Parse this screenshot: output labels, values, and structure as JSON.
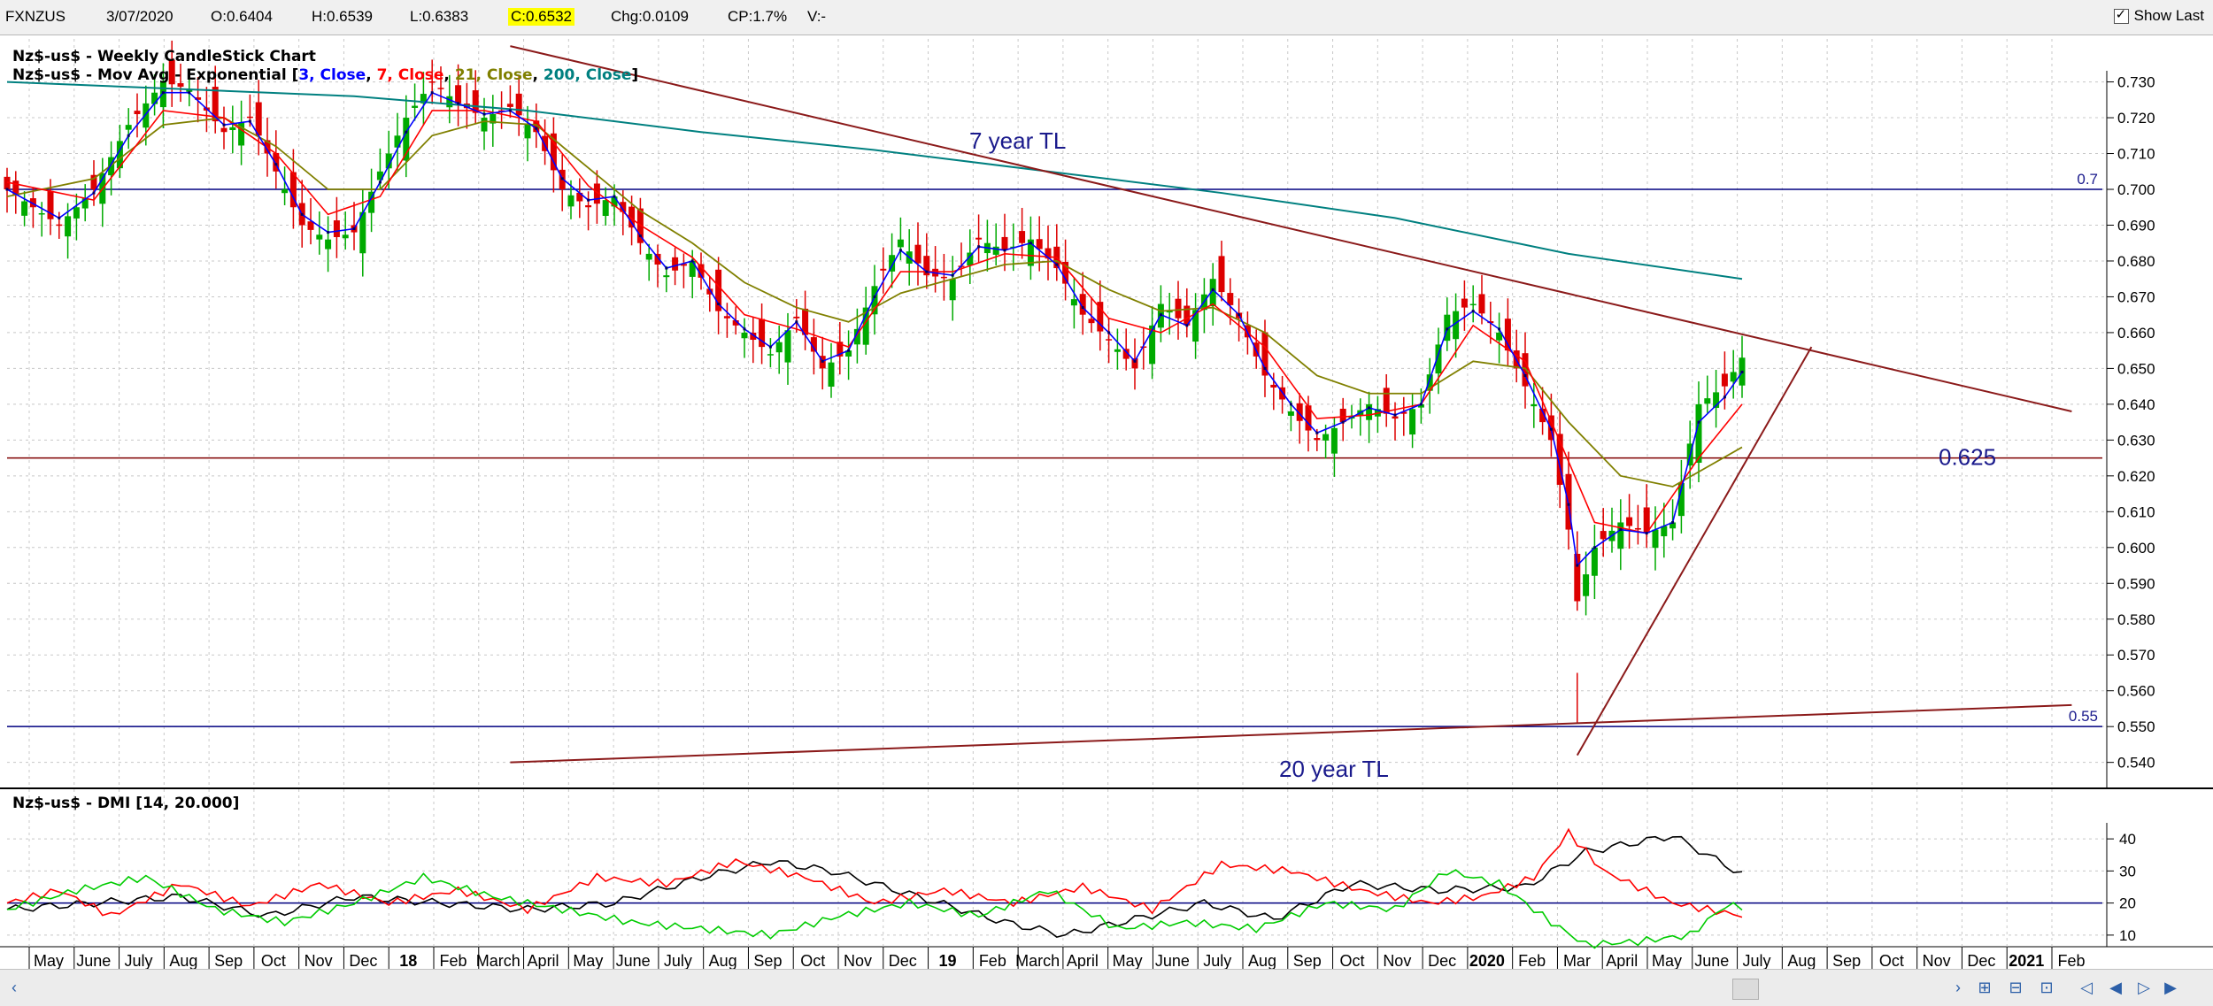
{
  "toolbar": {
    "symbol": "FXNZUS",
    "date": "3/07/2020",
    "open": "O:0.6404",
    "high": "H:0.6539",
    "low": "L:0.6383",
    "close": "C:0.6532",
    "change": "Chg:0.0109",
    "change_pct": "CP:1.7%",
    "volume": "V:-",
    "show_last_label": "Show Last",
    "show_last_checked": true
  },
  "price_panel": {
    "title": "Nz$-us$ - Weekly CandleStick Chart",
    "ma_prefix": "Nz$-us$ - Mov Avg - Exponential [",
    "ma_parts": [
      {
        "text": "3, Close",
        "color": "#0000ff"
      },
      {
        "text": "7, Close",
        "color": "#ff0000"
      },
      {
        "text": "21, Close",
        "color": "#808000"
      },
      {
        "text": "200, Close",
        "color": "#008080"
      }
    ],
    "ma_suffix": "]"
  },
  "dmi_panel": {
    "title": "Nz$-us$ - DMI [14, 20.000]"
  },
  "chart_data": [
    {
      "type": "candlestick",
      "title": "Nz$-us$ - Weekly CandleStick Chart",
      "ylim": [
        0.533,
        0.742
      ],
      "y_ticks": [
        "0.730",
        "0.720",
        "0.710",
        "0.700",
        "0.690",
        "0.680",
        "0.670",
        "0.660",
        "0.650",
        "0.640",
        "0.630",
        "0.620",
        "0.610",
        "0.600",
        "0.590",
        "0.580",
        "0.570",
        "0.560",
        "0.550",
        "0.540"
      ],
      "x_labels": [
        "May",
        "June",
        "July",
        "Aug",
        "Sep",
        "Oct",
        "Nov",
        "Dec",
        "18",
        "Feb",
        "March",
        "April",
        "May",
        "June",
        "July",
        "Aug",
        "Sep",
        "Oct",
        "Nov",
        "Dec",
        "19",
        "Feb",
        "March",
        "April",
        "May",
        "June",
        "July",
        "Aug",
        "Sep",
        "Oct",
        "Nov",
        "Dec",
        "2020",
        "Feb",
        "Mar",
        "April",
        "May",
        "June",
        "July",
        "Aug",
        "Sep",
        "Oct",
        "Nov",
        "Dec",
        "2021",
        "Feb"
      ],
      "close_path": [
        [
          0,
          0.7
        ],
        [
          6,
          0.69
        ],
        [
          10,
          0.7
        ],
        [
          14,
          0.718
        ],
        [
          18,
          0.73
        ],
        [
          21,
          0.728
        ],
        [
          25,
          0.716
        ],
        [
          28,
          0.72
        ],
        [
          31,
          0.705
        ],
        [
          34,
          0.69
        ],
        [
          37,
          0.686
        ],
        [
          40,
          0.688
        ],
        [
          43,
          0.705
        ],
        [
          46,
          0.72
        ],
        [
          49,
          0.73
        ],
        [
          52,
          0.724
        ],
        [
          55,
          0.72
        ],
        [
          58,
          0.723
        ],
        [
          61,
          0.716
        ],
        [
          64,
          0.7
        ],
        [
          67,
          0.695
        ],
        [
          70,
          0.698
        ],
        [
          73,
          0.685
        ],
        [
          76,
          0.676
        ],
        [
          79,
          0.68
        ],
        [
          82,
          0.666
        ],
        [
          85,
          0.66
        ],
        [
          88,
          0.654
        ],
        [
          91,
          0.664
        ],
        [
          94,
          0.65
        ],
        [
          97,
          0.655
        ],
        [
          100,
          0.673
        ],
        [
          103,
          0.686
        ],
        [
          106,
          0.676
        ],
        [
          109,
          0.675
        ],
        [
          112,
          0.686
        ],
        [
          115,
          0.683
        ],
        [
          118,
          0.686
        ],
        [
          121,
          0.678
        ],
        [
          124,
          0.665
        ],
        [
          127,
          0.658
        ],
        [
          130,
          0.65
        ],
        [
          133,
          0.668
        ],
        [
          136,
          0.662
        ],
        [
          139,
          0.675
        ],
        [
          142,
          0.664
        ],
        [
          145,
          0.648
        ],
        [
          148,
          0.638
        ],
        [
          151,
          0.63
        ],
        [
          154,
          0.635
        ],
        [
          157,
          0.64
        ],
        [
          160,
          0.636
        ],
        [
          163,
          0.64
        ],
        [
          166,
          0.665
        ],
        [
          169,
          0.668
        ],
        [
          172,
          0.66
        ],
        [
          175,
          0.645
        ],
        [
          178,
          0.63
        ],
        [
          180,
          0.605
        ],
        [
          181,
          0.585
        ],
        [
          183,
          0.6
        ],
        [
          186,
          0.607
        ],
        [
          189,
          0.604
        ],
        [
          192,
          0.607
        ],
        [
          195,
          0.64
        ],
        [
          198,
          0.645
        ],
        [
          200,
          0.653
        ]
      ],
      "ema_3_path": [
        [
          0,
          0.7
        ],
        [
          6,
          0.692
        ],
        [
          10,
          0.699
        ],
        [
          14,
          0.715
        ],
        [
          18,
          0.727
        ],
        [
          21,
          0.727
        ],
        [
          25,
          0.718
        ],
        [
          28,
          0.719
        ],
        [
          31,
          0.707
        ],
        [
          34,
          0.693
        ],
        [
          37,
          0.688
        ],
        [
          40,
          0.689
        ],
        [
          43,
          0.702
        ],
        [
          46,
          0.716
        ],
        [
          49,
          0.727
        ],
        [
          52,
          0.724
        ],
        [
          55,
          0.721
        ],
        [
          58,
          0.722
        ],
        [
          61,
          0.717
        ],
        [
          64,
          0.703
        ],
        [
          67,
          0.697
        ],
        [
          70,
          0.698
        ],
        [
          73,
          0.687
        ],
        [
          76,
          0.678
        ],
        [
          79,
          0.68
        ],
        [
          82,
          0.668
        ],
        [
          85,
          0.661
        ],
        [
          88,
          0.656
        ],
        [
          91,
          0.663
        ],
        [
          94,
          0.652
        ],
        [
          97,
          0.655
        ],
        [
          100,
          0.67
        ],
        [
          103,
          0.683
        ],
        [
          106,
          0.677
        ],
        [
          109,
          0.676
        ],
        [
          112,
          0.684
        ],
        [
          115,
          0.683
        ],
        [
          118,
          0.685
        ],
        [
          121,
          0.679
        ],
        [
          124,
          0.667
        ],
        [
          127,
          0.66
        ],
        [
          130,
          0.652
        ],
        [
          133,
          0.665
        ],
        [
          136,
          0.662
        ],
        [
          139,
          0.672
        ],
        [
          142,
          0.665
        ],
        [
          145,
          0.65
        ],
        [
          148,
          0.64
        ],
        [
          151,
          0.632
        ],
        [
          154,
          0.635
        ],
        [
          157,
          0.639
        ],
        [
          160,
          0.637
        ],
        [
          163,
          0.64
        ],
        [
          166,
          0.661
        ],
        [
          169,
          0.666
        ],
        [
          172,
          0.661
        ],
        [
          175,
          0.648
        ],
        [
          178,
          0.633
        ],
        [
          180,
          0.612
        ],
        [
          181,
          0.595
        ],
        [
          183,
          0.6
        ],
        [
          186,
          0.605
        ],
        [
          189,
          0.604
        ],
        [
          192,
          0.607
        ],
        [
          195,
          0.635
        ],
        [
          198,
          0.642
        ],
        [
          200,
          0.649
        ]
      ],
      "ema_7_path": [
        [
          0,
          0.702
        ],
        [
          10,
          0.697
        ],
        [
          18,
          0.722
        ],
        [
          25,
          0.72
        ],
        [
          31,
          0.71
        ],
        [
          37,
          0.693
        ],
        [
          43,
          0.698
        ],
        [
          49,
          0.722
        ],
        [
          55,
          0.722
        ],
        [
          61,
          0.719
        ],
        [
          67,
          0.701
        ],
        [
          73,
          0.69
        ],
        [
          79,
          0.681
        ],
        [
          85,
          0.665
        ],
        [
          91,
          0.661
        ],
        [
          97,
          0.656
        ],
        [
          103,
          0.677
        ],
        [
          109,
          0.677
        ],
        [
          115,
          0.682
        ],
        [
          121,
          0.681
        ],
        [
          127,
          0.664
        ],
        [
          133,
          0.66
        ],
        [
          139,
          0.668
        ],
        [
          145,
          0.656
        ],
        [
          151,
          0.636
        ],
        [
          157,
          0.637
        ],
        [
          163,
          0.64
        ],
        [
          169,
          0.662
        ],
        [
          175,
          0.652
        ],
        [
          180,
          0.624
        ],
        [
          183,
          0.607
        ],
        [
          189,
          0.604
        ],
        [
          195,
          0.625
        ],
        [
          200,
          0.64
        ]
      ],
      "ema_21_path": [
        [
          0,
          0.698
        ],
        [
          10,
          0.703
        ],
        [
          18,
          0.718
        ],
        [
          25,
          0.72
        ],
        [
          31,
          0.712
        ],
        [
          37,
          0.7
        ],
        [
          43,
          0.7
        ],
        [
          49,
          0.715
        ],
        [
          55,
          0.719
        ],
        [
          61,
          0.718
        ],
        [
          67,
          0.706
        ],
        [
          73,
          0.694
        ],
        [
          79,
          0.685
        ],
        [
          85,
          0.674
        ],
        [
          91,
          0.667
        ],
        [
          97,
          0.663
        ],
        [
          103,
          0.671
        ],
        [
          109,
          0.675
        ],
        [
          115,
          0.679
        ],
        [
          121,
          0.68
        ],
        [
          127,
          0.672
        ],
        [
          133,
          0.666
        ],
        [
          139,
          0.667
        ],
        [
          145,
          0.66
        ],
        [
          151,
          0.648
        ],
        [
          157,
          0.643
        ],
        [
          163,
          0.643
        ],
        [
          169,
          0.652
        ],
        [
          175,
          0.65
        ],
        [
          180,
          0.635
        ],
        [
          186,
          0.62
        ],
        [
          192,
          0.617
        ],
        [
          200,
          0.628
        ]
      ],
      "ema_200_path": [
        [
          0,
          0.73
        ],
        [
          20,
          0.728
        ],
        [
          40,
          0.726
        ],
        [
          60,
          0.722
        ],
        [
          80,
          0.716
        ],
        [
          100,
          0.711
        ],
        [
          120,
          0.705
        ],
        [
          140,
          0.699
        ],
        [
          160,
          0.692
        ],
        [
          180,
          0.682
        ],
        [
          200,
          0.675
        ]
      ],
      "trendlines": [
        {
          "label": "7 year TL",
          "from": [
            58,
            0.74
          ],
          "to": [
            238,
            0.638
          ]
        },
        {
          "label": "20 year TL",
          "from": [
            58,
            0.54
          ],
          "to": [
            238,
            0.556
          ]
        },
        {
          "label": "",
          "from": [
            181,
            0.542
          ],
          "to": [
            208,
            0.656
          ]
        }
      ],
      "horizontal_levels": [
        {
          "value": 0.7,
          "label": "0.7",
          "color": "#000080"
        },
        {
          "value": 0.625,
          "label": "0.625",
          "color": "#800000"
        },
        {
          "value": 0.55,
          "label": "0.55",
          "color": "#000080"
        }
      ]
    },
    {
      "type": "line",
      "title": "Nz$-us$ - DMI [14, 20.000]",
      "ylim": [
        5,
        45
      ],
      "y_ticks": [
        "40",
        "30",
        "20",
        "10"
      ],
      "threshold": 20,
      "series": [
        {
          "color": "#000000",
          "values": [
            [
              0,
              18
            ],
            [
              10,
              20
            ],
            [
              20,
              22
            ],
            [
              30,
              16
            ],
            [
              40,
              22
            ],
            [
              50,
              20
            ],
            [
              60,
              18
            ],
            [
              70,
              20
            ],
            [
              80,
              28
            ],
            [
              88,
              33
            ],
            [
              95,
              30
            ],
            [
              105,
              22
            ],
            [
              115,
              14
            ],
            [
              122,
              10
            ],
            [
              130,
              15
            ],
            [
              138,
              20
            ],
            [
              146,
              15
            ],
            [
              155,
              26
            ],
            [
              165,
              24
            ],
            [
              175,
              25
            ],
            [
              182,
              36
            ],
            [
              192,
              41
            ],
            [
              200,
              29
            ]
          ]
        },
        {
          "color": "#ff0000",
          "values": [
            [
              0,
              20
            ],
            [
              6,
              24
            ],
            [
              12,
              16
            ],
            [
              20,
              26
            ],
            [
              28,
              19
            ],
            [
              36,
              26
            ],
            [
              44,
              20
            ],
            [
              52,
              24
            ],
            [
              60,
              18
            ],
            [
              68,
              28
            ],
            [
              76,
              26
            ],
            [
              84,
              33
            ],
            [
              92,
              28
            ],
            [
              100,
              20
            ],
            [
              108,
              24
            ],
            [
              116,
              20
            ],
            [
              124,
              25
            ],
            [
              132,
              18
            ],
            [
              140,
              32
            ],
            [
              148,
              30
            ],
            [
              156,
              24
            ],
            [
              164,
              20
            ],
            [
              170,
              22
            ],
            [
              176,
              28
            ],
            [
              180,
              42
            ],
            [
              184,
              30
            ],
            [
              192,
              20
            ],
            [
              200,
              16
            ]
          ]
        },
        {
          "color": "#00cc00",
          "values": [
            [
              0,
              18
            ],
            [
              8,
              24
            ],
            [
              16,
              28
            ],
            [
              24,
              18
            ],
            [
              32,
              14
            ],
            [
              40,
              20
            ],
            [
              48,
              28
            ],
            [
              56,
              22
            ],
            [
              64,
              18
            ],
            [
              72,
              14
            ],
            [
              80,
              12
            ],
            [
              88,
              10
            ],
            [
              96,
              16
            ],
            [
              104,
              20
            ],
            [
              112,
              16
            ],
            [
              120,
              24
            ],
            [
              128,
              12
            ],
            [
              136,
              14
            ],
            [
              144,
              12
            ],
            [
              152,
              20
            ],
            [
              160,
              18
            ],
            [
              166,
              30
            ],
            [
              172,
              26
            ],
            [
              178,
              14
            ],
            [
              182,
              7
            ],
            [
              188,
              8
            ],
            [
              194,
              10
            ],
            [
              198,
              19
            ],
            [
              200,
              19
            ]
          ]
        }
      ]
    }
  ]
}
